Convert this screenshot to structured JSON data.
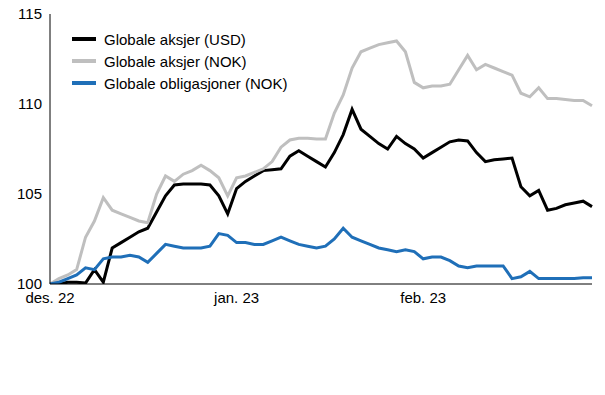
{
  "chart_data": {
    "type": "line",
    "categories": [
      "des. 22",
      null,
      null,
      null,
      null,
      null,
      null,
      null,
      null,
      null,
      null,
      null,
      null,
      null,
      null,
      null,
      null,
      null,
      null,
      null,
      null,
      "jan. 23",
      null,
      null,
      null,
      null,
      null,
      null,
      null,
      null,
      null,
      null,
      null,
      null,
      null,
      null,
      null,
      null,
      null,
      null,
      null,
      null,
      "feb. 23",
      null,
      null,
      null,
      null,
      null,
      null,
      null,
      null,
      null,
      null,
      null,
      null,
      null,
      null,
      null,
      null,
      null,
      null,
      null
    ],
    "series": [
      {
        "name": "Globale aksjer (USD)",
        "color": "#000000",
        "values": [
          100,
          100,
          100.1,
          100.1,
          100.05,
          100.8,
          100.1,
          102.0,
          102.3,
          102.6,
          102.9,
          103.1,
          104.0,
          104.9,
          105.5,
          105.55,
          105.55,
          105.55,
          105.5,
          104.9,
          103.9,
          105.3,
          105.7,
          106.0,
          106.3,
          106.35,
          106.4,
          107.1,
          107.4,
          107.1,
          106.8,
          106.5,
          107.3,
          108.3,
          109.7,
          108.6,
          108.2,
          107.8,
          107.5,
          108.2,
          107.8,
          107.5,
          107.0,
          107.3,
          107.6,
          107.9,
          108.0,
          107.95,
          107.3,
          106.8,
          106.9,
          106.95,
          107.0,
          105.4,
          104.9,
          105.2,
          104.1,
          104.2,
          104.4,
          104.5,
          104.6,
          104.3
        ]
      },
      {
        "name": "Globale aksjer (NOK)",
        "color": "#bfbfbf",
        "values": [
          100,
          100.3,
          100.5,
          100.8,
          102.6,
          103.5,
          104.8,
          104.1,
          103.9,
          103.7,
          103.5,
          103.4,
          105.0,
          106.0,
          105.7,
          106.1,
          106.3,
          106.6,
          106.3,
          105.9,
          104.9,
          105.9,
          106.0,
          106.2,
          106.4,
          106.8,
          107.6,
          108.0,
          108.1,
          108.1,
          108.05,
          108.05,
          109.5,
          110.5,
          112.0,
          112.9,
          113.1,
          113.3,
          113.4,
          113.5,
          112.9,
          111.2,
          110.9,
          111.0,
          111.0,
          111.1,
          111.9,
          112.7,
          111.9,
          112.2,
          112.0,
          111.8,
          111.6,
          110.6,
          110.4,
          110.9,
          110.3,
          110.3,
          110.25,
          110.2,
          110.2,
          109.9
        ]
      },
      {
        "name": "Globale obligasjoner (NOK)",
        "color": "#1f6fb8",
        "values": [
          100,
          100.1,
          100.3,
          100.5,
          100.9,
          100.8,
          101.4,
          101.5,
          101.5,
          101.6,
          101.5,
          101.2,
          101.7,
          102.2,
          102.1,
          102.0,
          102.0,
          102.0,
          102.1,
          102.8,
          102.7,
          102.3,
          102.3,
          102.2,
          102.2,
          102.4,
          102.6,
          102.4,
          102.2,
          102.1,
          102.0,
          102.1,
          102.5,
          103.1,
          102.6,
          102.4,
          102.2,
          102.0,
          101.9,
          101.8,
          101.9,
          101.8,
          101.4,
          101.5,
          101.5,
          101.3,
          101.0,
          100.9,
          101.0,
          101.0,
          101.0,
          101.0,
          100.3,
          100.4,
          100.7,
          100.3,
          100.3,
          100.3,
          100.3,
          100.3,
          100.35,
          100.35
        ]
      }
    ],
    "ylim": [
      100,
      115
    ],
    "yticks": [
      100,
      105,
      110,
      115
    ],
    "grid": false,
    "legend": "upper left"
  }
}
